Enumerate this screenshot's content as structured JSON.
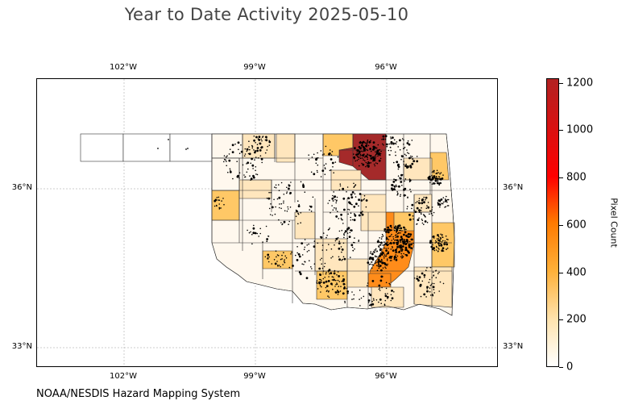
{
  "title": "Year to Date Activity 2025-05-10",
  "footer": "NOAA/NESDIS Hazard Mapping System",
  "map": {
    "region": "Oklahoma",
    "lon_ticks": [
      "102°W",
      "99°W",
      "96°W"
    ],
    "lat_ticks": [
      "36°N",
      "33°N"
    ],
    "gridlines": true
  },
  "colorbar": {
    "label": "Pixel Count",
    "ticks": [
      "0",
      "200",
      "400",
      "600",
      "800",
      "1000",
      "1200"
    ],
    "range": [
      0,
      1220
    ],
    "colors": [
      "#ffffff",
      "#ffe4b0",
      "#ffb13a",
      "#ff7a00",
      "#ff0000",
      "#b22222"
    ]
  },
  "counties": {
    "highest_activity_color": "#a52a2a",
    "high_activity_color": "#ff8c1a",
    "medium_activity_color": "#ffc866",
    "low_activity_color": "#ffe6bd",
    "minimal_activity_color": "#fff8ee"
  },
  "fire_detections_color": "#000000"
}
